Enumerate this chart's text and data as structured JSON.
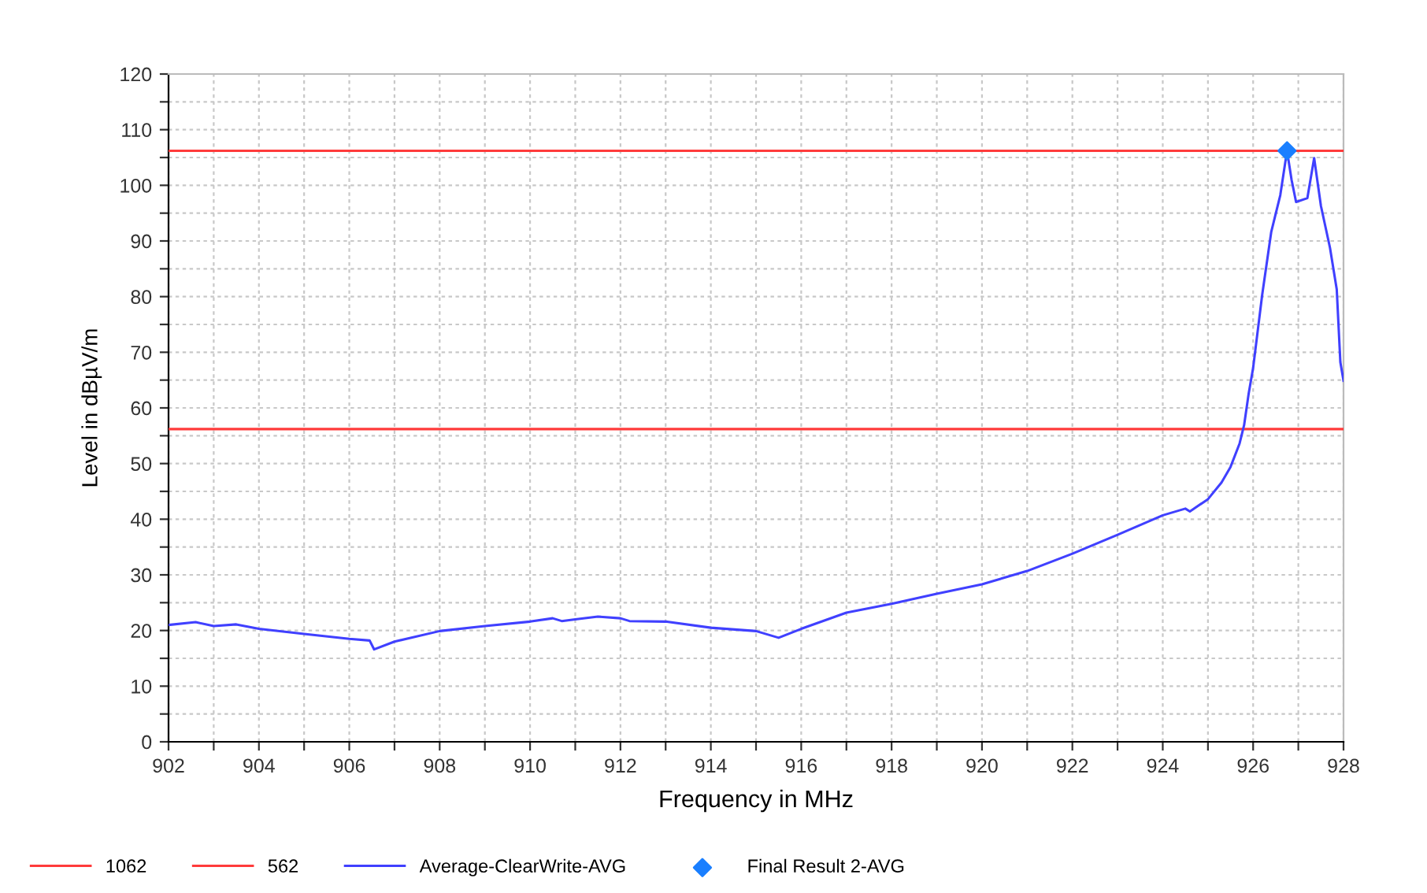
{
  "chart_data": {
    "type": "line",
    "xlabel": "Frequency in MHz",
    "ylabel": "Level in dBµV/m",
    "xlim": [
      902,
      928
    ],
    "ylim": [
      0,
      120
    ],
    "xticks": [
      902,
      {
        "value": 903,
        "label": null
      },
      904,
      {
        "value": 905,
        "label": null
      },
      906,
      {
        "value": 907,
        "label": null
      },
      908,
      {
        "value": 909,
        "label": null
      },
      910,
      {
        "value": 911,
        "label": null
      },
      912,
      {
        "value": 913,
        "label": null
      },
      914,
      {
        "value": 915,
        "label": null
      },
      916,
      {
        "value": 917,
        "label": null
      },
      918,
      {
        "value": 919,
        "label": null
      },
      920,
      {
        "value": 921,
        "label": null
      },
      922,
      {
        "value": 923,
        "label": null
      },
      924,
      {
        "value": 925,
        "label": null
      },
      926,
      {
        "value": 927,
        "label": null
      },
      928
    ],
    "yticks": [
      0,
      {
        "value": 5,
        "label": null
      },
      10,
      {
        "value": 15,
        "label": null
      },
      20,
      {
        "value": 25,
        "label": null
      },
      30,
      {
        "value": 35,
        "label": null
      },
      40,
      {
        "value": 45,
        "label": null
      },
      50,
      {
        "value": 55,
        "label": null
      },
      60,
      {
        "value": 65,
        "label": null
      },
      70,
      {
        "value": 75,
        "label": null
      },
      80,
      {
        "value": 85,
        "label": null
      },
      90,
      {
        "value": 95,
        "label": null
      },
      100,
      {
        "value": 105,
        "label": null
      },
      110,
      {
        "value": 115,
        "label": null
      },
      120
    ],
    "grid": true,
    "legend": "bottom",
    "line_style": "solid",
    "series": [
      {
        "name": "1062",
        "color": "#ff3b3b",
        "x": [
          902,
          928
        ],
        "values": [
          106.2,
          106.2
        ]
      },
      {
        "name": "562",
        "color": "#ff3b3b",
        "x": [
          902,
          928
        ],
        "values": [
          56.2,
          56.2
        ]
      },
      {
        "name": "Average-ClearWrite-AVG",
        "color": "#4040ff",
        "x": [
          902.0,
          902.6,
          903.0,
          903.5,
          904.0,
          905.0,
          906.0,
          906.45,
          906.55,
          907.0,
          908.0,
          909.0,
          910.0,
          910.5,
          910.7,
          911.0,
          911.5,
          912.0,
          912.2,
          913.0,
          914.0,
          915.0,
          915.5,
          916.0,
          917.0,
          918.0,
          919.0,
          920.0,
          921.0,
          922.0,
          923.0,
          924.0,
          924.5,
          924.6,
          925.0,
          925.3,
          925.5,
          925.7,
          925.8,
          925.9,
          926.0,
          926.2,
          926.4,
          926.6,
          926.75,
          926.85,
          926.95,
          927.2,
          927.35,
          927.5,
          927.7,
          927.85,
          927.93,
          928.0
        ],
        "values": [
          21.0,
          21.5,
          20.8,
          21.1,
          20.3,
          19.4,
          18.5,
          18.2,
          16.6,
          18.0,
          19.9,
          20.8,
          21.6,
          22.2,
          21.7,
          22.0,
          22.5,
          22.2,
          21.7,
          21.6,
          20.5,
          19.9,
          18.7,
          20.3,
          23.2,
          24.8,
          26.6,
          28.3,
          30.7,
          33.8,
          37.2,
          40.7,
          41.9,
          41.4,
          43.6,
          46.6,
          49.4,
          53.6,
          56.9,
          62.5,
          67.2,
          80.3,
          91.6,
          98.2,
          106.2,
          101.0,
          97.0,
          97.7,
          104.9,
          96.3,
          88.8,
          81.3,
          68.2,
          64.9
        ]
      },
      {
        "name": "Final Result 2-AVG",
        "type": "scatter",
        "marker": "diamond",
        "color": "#1a7fff",
        "x": [
          926.75
        ],
        "values": [
          106.2
        ]
      }
    ]
  }
}
